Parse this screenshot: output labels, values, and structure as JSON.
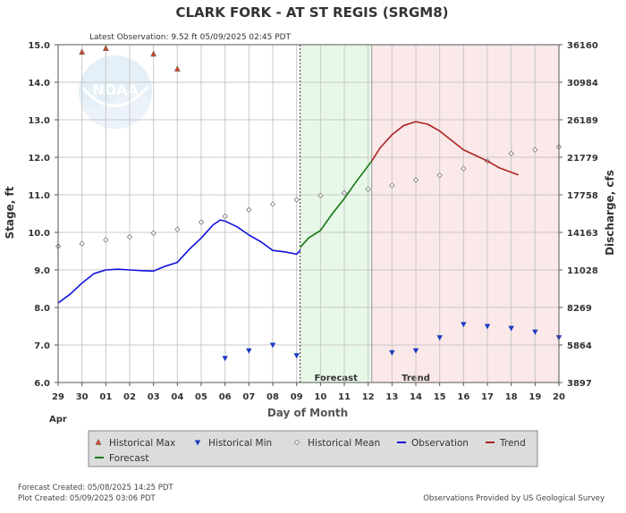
{
  "chart_data": {
    "type": "line",
    "title": "CLARK FORK - AT ST REGIS  (SRGM8)",
    "latest_observation": "Latest Observation:  9.52 ft 05/09/2025 02:45 PDT",
    "xlabel": "Day of Month",
    "ylabel_left": "Stage, ft",
    "ylabel_right": "Discharge, cfs",
    "month_label": "Apr",
    "x_ticks": [
      "29",
      "30",
      "01",
      "02",
      "03",
      "04",
      "05",
      "06",
      "07",
      "08",
      "09",
      "10",
      "11",
      "12",
      "13",
      "14",
      "15",
      "16",
      "17",
      "18",
      "19",
      "20"
    ],
    "xlim": [
      0,
      21
    ],
    "ylim": [
      6.0,
      15.0
    ],
    "y_ticks_left": [
      "6.0",
      "7.0",
      "8.0",
      "9.0",
      "10.0",
      "11.0",
      "12.0",
      "13.0",
      "14.0",
      "15.0"
    ],
    "y_ticks_right": [
      {
        "stage": 6.0,
        "label": "3897"
      },
      {
        "stage": 7.0,
        "label": "5864"
      },
      {
        "stage": 8.0,
        "label": "8269"
      },
      {
        "stage": 9.0,
        "label": "11028"
      },
      {
        "stage": 10.0,
        "label": "14163"
      },
      {
        "stage": 11.0,
        "label": "17758"
      },
      {
        "stage": 12.0,
        "label": "21779"
      },
      {
        "stage": 13.0,
        "label": "26189"
      },
      {
        "stage": 14.0,
        "label": "30984"
      },
      {
        "stage": 15.0,
        "label": "36160"
      }
    ],
    "forecast_region": {
      "start": 10.15,
      "end": 13.15,
      "label": "Forecast",
      "color": "#e8f8e8"
    },
    "trend_region": {
      "start": 13.15,
      "end": 21,
      "label": "Trend",
      "color": "#fbe8e8"
    },
    "now_line_x": 10.15,
    "series": [
      {
        "name": "Historical Max",
        "kind": "triangle-up",
        "color": "#d04a2a",
        "points": [
          [
            1,
            14.8
          ],
          [
            2,
            14.9
          ],
          [
            4,
            14.75
          ],
          [
            5,
            14.35
          ]
        ]
      },
      {
        "name": "Historical Min",
        "kind": "triangle-down",
        "color": "#1a3bc0",
        "points": [
          [
            7,
            6.65
          ],
          [
            8,
            6.85
          ],
          [
            9,
            7.0
          ],
          [
            10,
            6.72
          ],
          [
            14,
            6.8
          ],
          [
            15,
            6.85
          ],
          [
            16,
            7.2
          ],
          [
            17,
            7.55
          ],
          [
            18,
            7.5
          ],
          [
            19,
            7.45
          ],
          [
            20,
            7.35
          ],
          [
            21,
            7.2
          ]
        ]
      },
      {
        "name": "Historical Mean",
        "kind": "diamond",
        "color": "#777777",
        "points": [
          [
            0,
            9.63
          ],
          [
            1,
            9.7
          ],
          [
            2,
            9.8
          ],
          [
            3,
            9.88
          ],
          [
            4,
            9.98
          ],
          [
            5,
            10.08
          ],
          [
            6,
            10.27
          ],
          [
            7,
            10.43
          ],
          [
            8,
            10.6
          ],
          [
            9,
            10.75
          ],
          [
            10,
            10.87
          ],
          [
            11,
            10.98
          ],
          [
            12,
            11.05
          ],
          [
            13,
            11.15
          ],
          [
            14,
            11.25
          ],
          [
            15,
            11.4
          ],
          [
            16,
            11.52
          ],
          [
            17,
            11.7
          ],
          [
            18,
            11.9
          ],
          [
            19,
            12.1
          ],
          [
            20,
            12.2
          ],
          [
            21,
            12.28
          ]
        ]
      },
      {
        "name": "Observation",
        "kind": "line",
        "color": "#1111dd",
        "points": [
          [
            0,
            8.12
          ],
          [
            0.5,
            8.35
          ],
          [
            1,
            8.65
          ],
          [
            1.5,
            8.9
          ],
          [
            2,
            9.0
          ],
          [
            2.5,
            9.02
          ],
          [
            3,
            9.0
          ],
          [
            3.5,
            8.98
          ],
          [
            4,
            8.97
          ],
          [
            4.5,
            9.1
          ],
          [
            5,
            9.2
          ],
          [
            5.5,
            9.55
          ],
          [
            6,
            9.85
          ],
          [
            6.5,
            10.2
          ],
          [
            6.8,
            10.33
          ],
          [
            7,
            10.3
          ],
          [
            7.5,
            10.15
          ],
          [
            8,
            9.93
          ],
          [
            8.5,
            9.75
          ],
          [
            9,
            9.52
          ],
          [
            9.5,
            9.48
          ],
          [
            10,
            9.42
          ],
          [
            10.15,
            9.52
          ]
        ]
      },
      {
        "name": "Forecast",
        "kind": "line",
        "color": "#117711",
        "points": [
          [
            10.15,
            9.6
          ],
          [
            10.5,
            9.85
          ],
          [
            11,
            10.05
          ],
          [
            11.5,
            10.5
          ],
          [
            12,
            10.9
          ],
          [
            12.5,
            11.35
          ],
          [
            13.15,
            11.9
          ]
        ]
      },
      {
        "name": "Trend",
        "kind": "line",
        "color": "#aa2222",
        "points": [
          [
            13.15,
            11.9
          ],
          [
            13.5,
            12.25
          ],
          [
            14,
            12.6
          ],
          [
            14.5,
            12.85
          ],
          [
            15,
            12.95
          ],
          [
            15.5,
            12.88
          ],
          [
            16,
            12.7
          ],
          [
            16.5,
            12.45
          ],
          [
            17,
            12.2
          ],
          [
            17.5,
            12.05
          ],
          [
            18,
            11.9
          ],
          [
            18.5,
            11.72
          ],
          [
            19,
            11.6
          ],
          [
            19.3,
            11.53
          ]
        ]
      }
    ]
  },
  "legend": {
    "items": [
      {
        "label": "Historical Max",
        "symbol": "triangle-up",
        "color": "#d04a2a"
      },
      {
        "label": "Historical Min",
        "symbol": "triangle-down",
        "color": "#1a3bc0"
      },
      {
        "label": "Historical Mean",
        "symbol": "diamond",
        "color": "#777777"
      },
      {
        "label": "Observation",
        "symbol": "line",
        "color": "#1111dd"
      },
      {
        "label": "Trend",
        "symbol": "line",
        "color": "#aa2222"
      },
      {
        "label": "Forecast",
        "symbol": "line",
        "color": "#117711"
      }
    ]
  },
  "footer": {
    "forecast_created": "Forecast Created:  05/08/2025 14:25 PDT",
    "plot_created": "Plot Created:  05/09/2025 03:06 PDT",
    "attribution": "Observations Provided by US Geological Survey"
  },
  "watermark": {
    "text": "NOAA"
  }
}
